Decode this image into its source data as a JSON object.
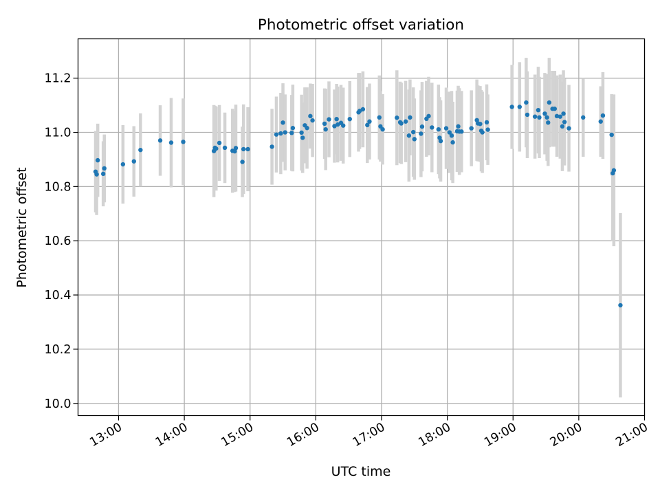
{
  "chart_data": {
    "type": "scatter",
    "title": "Photometric offset variation",
    "xlabel": "UTC time",
    "ylabel": "Photometric offset",
    "xlim": [
      "12:23",
      "21:00"
    ],
    "ylim": [
      9.955,
      11.345
    ],
    "xticks": [
      "13:00",
      "14:00",
      "15:00",
      "16:00",
      "17:00",
      "18:00",
      "19:00",
      "20:00",
      "21:00"
    ],
    "yticks": [
      10.0,
      10.2,
      10.4,
      10.6,
      10.8,
      11.0,
      11.2
    ],
    "yticklabels": [
      "10.0",
      "10.2",
      "10.4",
      "10.6",
      "10.8",
      "11.0",
      "11.2"
    ],
    "grid": true,
    "colors": {
      "points": "#1f77b4",
      "errorbars": "#d3d3d3",
      "grid": "#b0b0b0"
    },
    "series": [
      {
        "points": [
          [
            "12:39",
            10.855,
            0.15
          ],
          [
            "12:40",
            10.845,
            0.15
          ],
          [
            "12:41",
            10.897,
            0.135
          ],
          [
            "12:46",
            10.847,
            0.12
          ],
          [
            "12:47",
            10.867,
            0.125
          ],
          [
            "13:04",
            10.882,
            0.145
          ],
          [
            "13:14",
            10.893,
            0.13
          ],
          [
            "13:20",
            10.935,
            0.135
          ],
          [
            "13:38",
            10.97,
            0.13
          ],
          [
            "13:48",
            10.962,
            0.165
          ],
          [
            "13:59",
            10.965,
            0.16
          ],
          [
            "14:27",
            10.931,
            0.17
          ],
          [
            "14:28",
            10.943,
            0.155
          ],
          [
            "14:29",
            10.94,
            0.155
          ],
          [
            "14:32",
            10.961,
            0.14
          ],
          [
            "14:37",
            10.943,
            0.13
          ],
          [
            "14:44",
            10.932,
            0.155
          ],
          [
            "14:46",
            10.93,
            0.15
          ],
          [
            "14:47",
            10.942,
            0.16
          ],
          [
            "14:53",
            10.891,
            0.13
          ],
          [
            "14:54",
            10.938,
            0.165
          ],
          [
            "14:58",
            10.938,
            0.155
          ],
          [
            "15:20",
            10.947,
            0.14
          ],
          [
            "15:24",
            10.992,
            0.14
          ],
          [
            "15:28",
            10.996,
            0.15
          ],
          [
            "15:30",
            11.036,
            0.145
          ],
          [
            "15:32",
            11.0,
            0.14
          ],
          [
            "15:38",
            10.998,
            0.14
          ],
          [
            "15:39",
            11.016,
            0.16
          ],
          [
            "15:47",
            10.999,
            0.14
          ],
          [
            "15:48",
            10.98,
            0.13
          ],
          [
            "15:50",
            11.026,
            0.14
          ],
          [
            "15:52",
            11.016,
            0.15
          ],
          [
            "15:55",
            11.06,
            0.12
          ],
          [
            "15:57",
            11.044,
            0.135
          ],
          [
            "16:08",
            11.032,
            0.13
          ],
          [
            "16:09",
            11.011,
            0.15
          ],
          [
            "16:12",
            11.048,
            0.14
          ],
          [
            "16:17",
            11.023,
            0.135
          ],
          [
            "16:19",
            11.049,
            0.13
          ],
          [
            "16:20",
            11.029,
            0.14
          ],
          [
            "16:23",
            11.035,
            0.14
          ],
          [
            "16:25",
            11.025,
            0.14
          ],
          [
            "16:31",
            11.049,
            0.14
          ],
          [
            "16:39",
            11.074,
            0.145
          ],
          [
            "16:40",
            11.079,
            0.14
          ],
          [
            "16:43",
            11.085,
            0.14
          ],
          [
            "16:47",
            11.027,
            0.14
          ],
          [
            "16:49",
            11.04,
            0.14
          ],
          [
            "16:58",
            11.055,
            0.155
          ],
          [
            "16:59",
            11.022,
            0.13
          ],
          [
            "17:01",
            11.011,
            0.13
          ],
          [
            "17:14",
            11.054,
            0.175
          ],
          [
            "17:17",
            11.037,
            0.15
          ],
          [
            "17:18",
            11.033,
            0.15
          ],
          [
            "17:22",
            11.04,
            0.15
          ],
          [
            "17:25",
            10.988,
            0.17
          ],
          [
            "17:26",
            11.055,
            0.14
          ],
          [
            "17:29",
            11.001,
            0.165
          ],
          [
            "17:30",
            10.975,
            0.15
          ],
          [
            "17:36",
            10.995,
            0.16
          ],
          [
            "17:37",
            11.021,
            0.165
          ],
          [
            "17:41",
            11.05,
            0.14
          ],
          [
            "17:43",
            11.06,
            0.145
          ],
          [
            "17:46",
            11.018,
            0.165
          ],
          [
            "17:52",
            11.011,
            0.165
          ],
          [
            "17:53",
            10.98,
            0.15
          ],
          [
            "17:54",
            10.968,
            0.15
          ],
          [
            "17:59",
            11.015,
            0.15
          ],
          [
            "18:02",
            11.0,
            0.15
          ],
          [
            "18:04",
            10.988,
            0.165
          ],
          [
            "18:05",
            10.963,
            0.15
          ],
          [
            "18:09",
            11.004,
            0.15
          ],
          [
            "18:10",
            11.022,
            0.15
          ],
          [
            "18:11",
            11.003,
            0.16
          ],
          [
            "18:13",
            11.003,
            0.15
          ],
          [
            "18:22",
            11.015,
            0.14
          ],
          [
            "18:27",
            11.045,
            0.15
          ],
          [
            "18:28",
            11.033,
            0.14
          ],
          [
            "18:30",
            11.031,
            0.14
          ],
          [
            "18:31",
            11.006,
            0.15
          ],
          [
            "18:32",
            11.0,
            0.15
          ],
          [
            "18:36",
            11.037,
            0.14
          ],
          [
            "18:37",
            11.01,
            0.13
          ],
          [
            "18:59",
            11.094,
            0.155
          ],
          [
            "19:06",
            11.094,
            0.165
          ],
          [
            "19:12",
            11.11,
            0.165
          ],
          [
            "19:13",
            11.065,
            0.16
          ],
          [
            "19:20",
            11.058,
            0.155
          ],
          [
            "19:23",
            11.082,
            0.16
          ],
          [
            "19:24",
            11.055,
            0.15
          ],
          [
            "19:29",
            11.069,
            0.15
          ],
          [
            "19:31",
            11.055,
            0.16
          ],
          [
            "19:32",
            11.036,
            0.16
          ],
          [
            "19:33",
            11.11,
            0.165
          ],
          [
            "19:36",
            11.087,
            0.14
          ],
          [
            "19:38",
            11.087,
            0.14
          ],
          [
            "19:40",
            11.06,
            0.15
          ],
          [
            "19:43",
            11.058,
            0.155
          ],
          [
            "19:45",
            11.022,
            0.165
          ],
          [
            "19:46",
            11.069,
            0.16
          ],
          [
            "19:47",
            11.038,
            0.16
          ],
          [
            "19:51",
            11.015,
            0.16
          ],
          [
            "20:04",
            11.055,
            0.145
          ],
          [
            "20:20",
            11.04,
            0.13
          ],
          [
            "20:22",
            11.062,
            0.16
          ],
          [
            "20:30",
            10.991,
            0.15
          ],
          [
            "20:31",
            10.849,
            0.25
          ],
          [
            "20:32",
            10.86,
            0.28
          ],
          [
            "20:38",
            10.362,
            0.34
          ]
        ]
      }
    ]
  }
}
